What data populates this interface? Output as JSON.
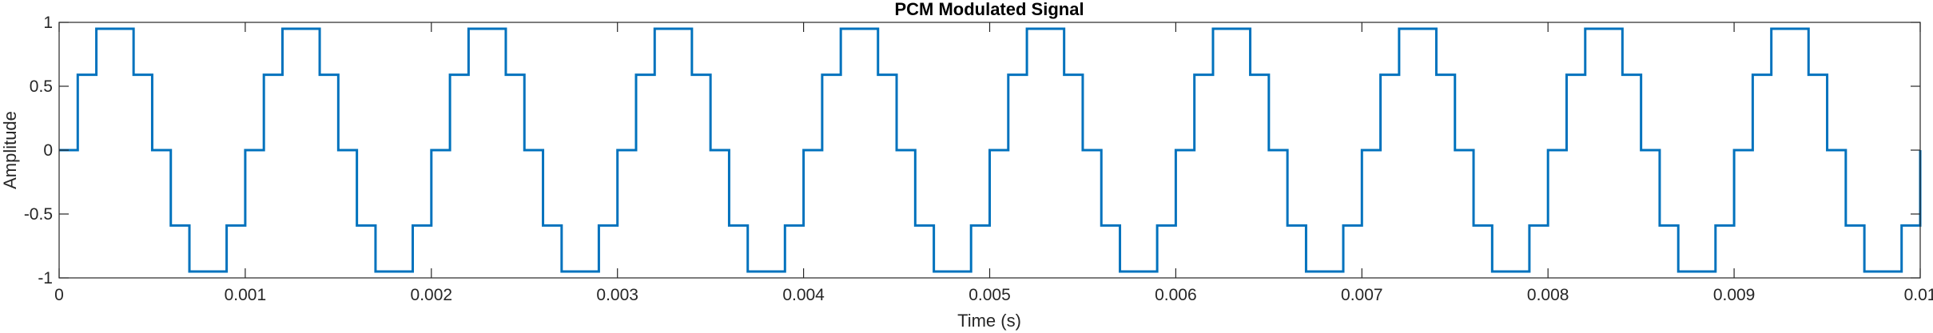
{
  "chart_data": {
    "type": "line",
    "title": "PCM Modulated Signal",
    "xlabel": "Time (s)",
    "ylabel": "Amplitude",
    "xlim": [
      0,
      0.01
    ],
    "ylim": [
      -1,
      1
    ],
    "xticks": [
      0,
      0.001,
      0.002,
      0.003,
      0.004,
      0.005,
      0.006,
      0.007,
      0.008,
      0.009,
      0.01
    ],
    "xtick_labels": [
      "0",
      "0.001",
      "0.002",
      "0.003",
      "0.004",
      "0.005",
      "0.006",
      "0.007",
      "0.008",
      "0.009",
      "0.01"
    ],
    "yticks": [
      -1,
      -0.5,
      0,
      0.5,
      1
    ],
    "ytick_labels": [
      "-1",
      "-0.5",
      "0",
      "0.5",
      "1"
    ],
    "grid": false,
    "line_style": "stairs",
    "series": [
      {
        "color": "#0072BD",
        "period_s": 0.001,
        "sample_interval_s": 0.0001,
        "cycles": 10,
        "levels_per_period": [
          0,
          0.59,
          0.95,
          0.95,
          0.59,
          0,
          -0.59,
          -0.95,
          -0.95,
          -0.59
        ],
        "final_value": 0
      }
    ]
  }
}
